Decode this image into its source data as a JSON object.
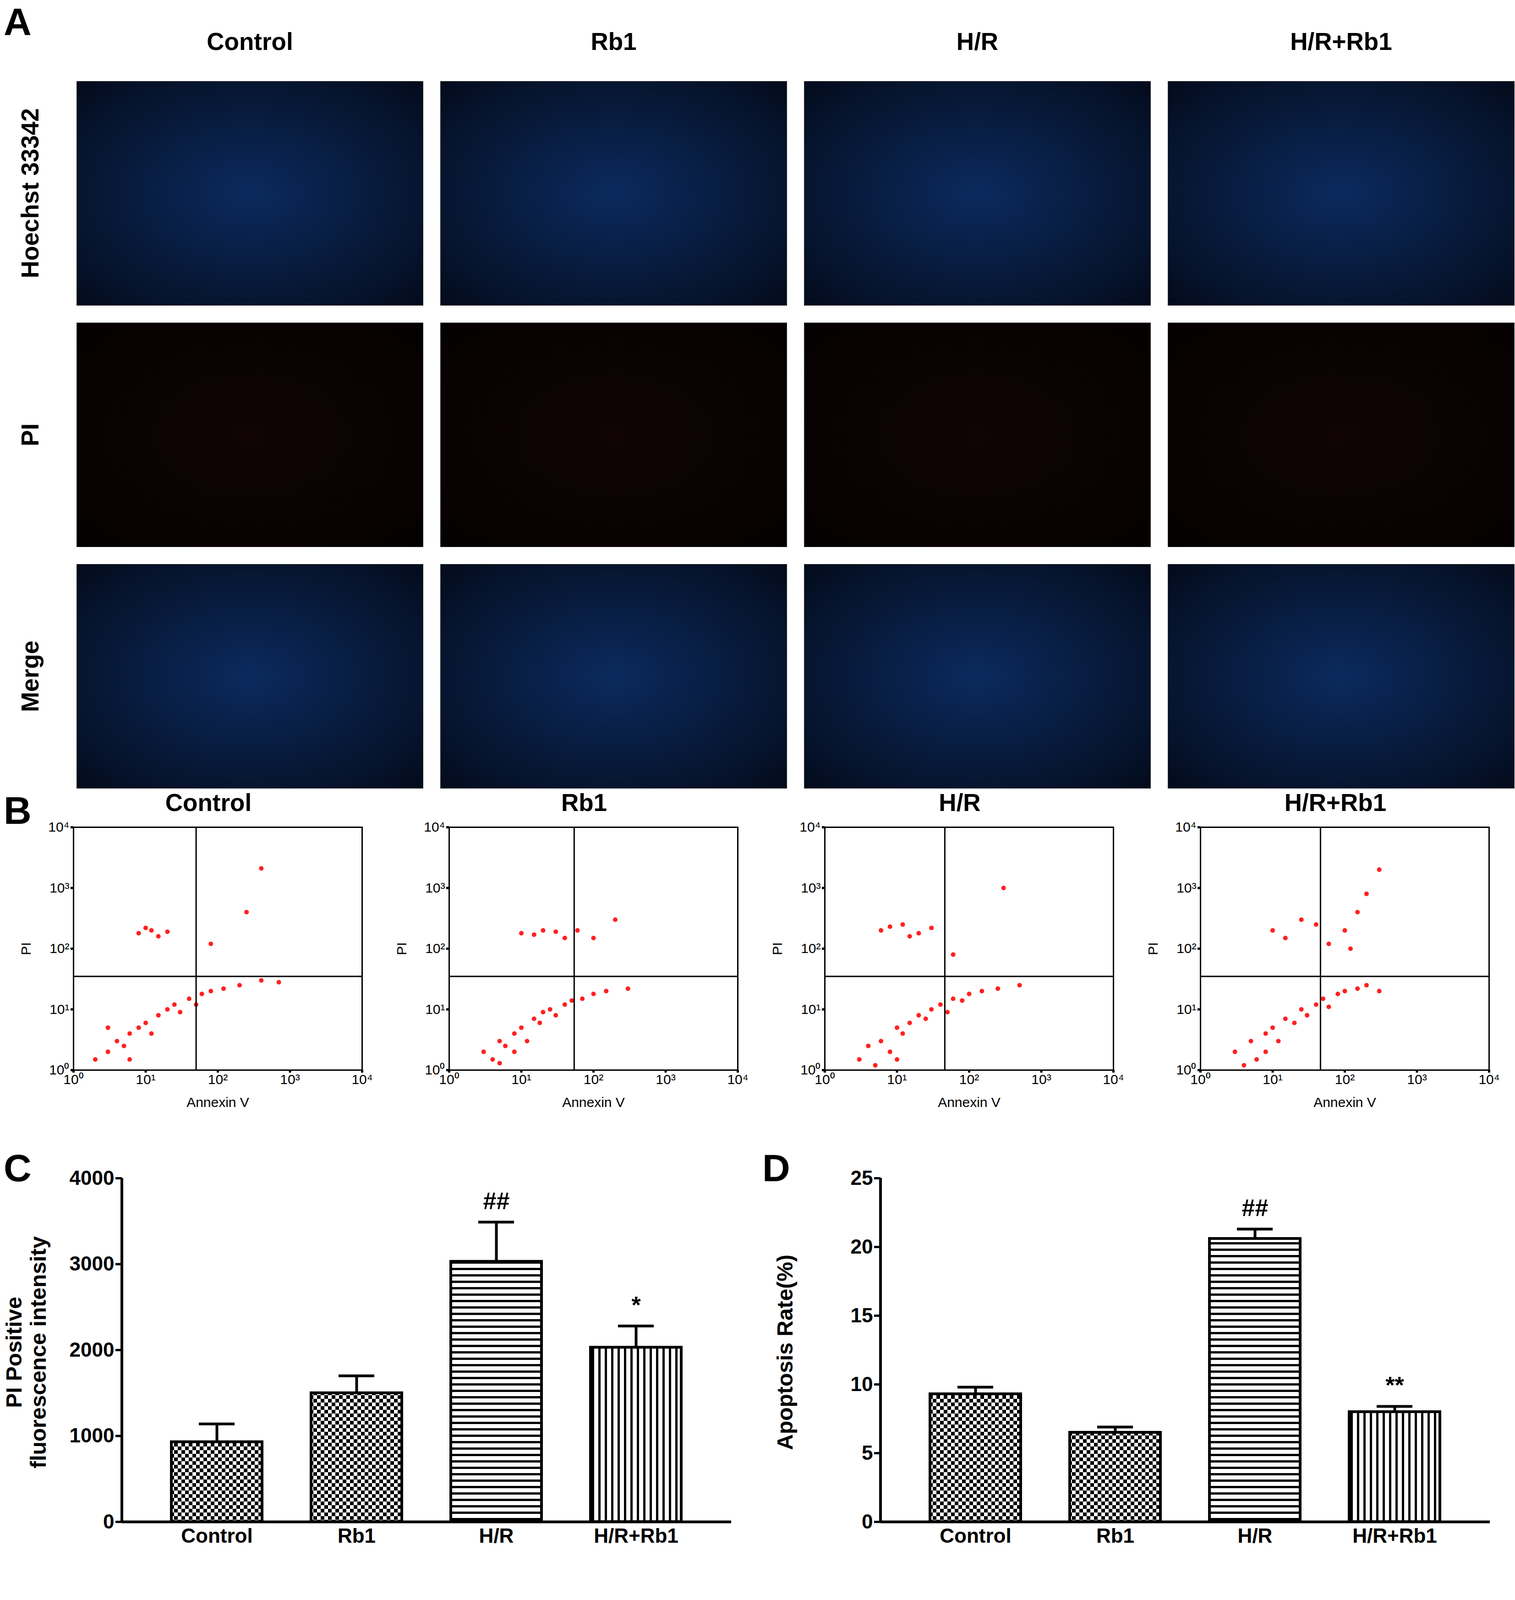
{
  "figure": {
    "panel": "A",
    "columns": [
      "Control",
      "Rb1",
      "H/R",
      "H/R+Rb1"
    ],
    "rows": [
      "Hoechst 33342",
      "PI",
      "Merge"
    ]
  },
  "chart_data": [
    {
      "type": "scatter",
      "panel": "B",
      "title": "Control",
      "x_label": "Annexin V",
      "y_label": "PI",
      "log": true,
      "xlim": [
        1,
        10000
      ],
      "ylim": [
        1,
        10000
      ],
      "xticks": [
        {
          "value": 1,
          "label": "10⁰"
        },
        {
          "value": 10,
          "label": "10¹"
        },
        {
          "value": 100,
          "label": "10²"
        },
        {
          "value": 1000,
          "label": "10³"
        },
        {
          "value": 10000,
          "label": "10⁴"
        }
      ],
      "yticks": [
        {
          "value": 1,
          "label": "10⁰"
        },
        {
          "value": 10,
          "label": "10¹"
        },
        {
          "value": 100,
          "label": "10²"
        },
        {
          "value": 1000,
          "label": "10³"
        },
        {
          "value": 10000,
          "label": "10⁴"
        }
      ],
      "color": "#ff2020",
      "gates": {
        "x": 50,
        "y": 35
      },
      "x": [
        2,
        3,
        4,
        5,
        6,
        8,
        10,
        12,
        15,
        20,
        25,
        30,
        40,
        50,
        60,
        80,
        120,
        200,
        400,
        700,
        3,
        6,
        8,
        12,
        15,
        20,
        10,
        80,
        250,
        400
      ],
      "y": [
        1.5,
        2,
        3,
        2.5,
        4,
        5,
        6,
        4,
        8,
        10,
        12,
        9,
        15,
        12,
        18,
        20,
        22,
        25,
        30,
        28,
        5,
        1.5,
        180,
        200,
        160,
        190,
        220,
        120,
        400,
        2100
      ]
    },
    {
      "type": "scatter",
      "title": "Rb1",
      "x_label": "Annexin V",
      "y_label": "PI",
      "log": true,
      "xlim": [
        1,
        10000
      ],
      "ylim": [
        1,
        10000
      ],
      "xticks": [
        {
          "value": 1,
          "label": "10⁰"
        },
        {
          "value": 10,
          "label": "10¹"
        },
        {
          "value": 100,
          "label": "10²"
        },
        {
          "value": 1000,
          "label": "10³"
        },
        {
          "value": 10000,
          "label": "10⁴"
        }
      ],
      "yticks": [
        {
          "value": 1,
          "label": "10⁰"
        },
        {
          "value": 10,
          "label": "10¹"
        },
        {
          "value": 100,
          "label": "10²"
        },
        {
          "value": 1000,
          "label": "10³"
        },
        {
          "value": 10000,
          "label": "10⁴"
        }
      ],
      "color": "#ff2020",
      "gates": {
        "x": 54,
        "y": 35
      },
      "x": [
        3,
        4,
        5,
        6,
        8,
        10,
        12,
        15,
        18,
        20,
        25,
        30,
        40,
        50,
        70,
        100,
        150,
        300,
        5,
        8,
        10,
        15,
        20,
        30,
        40,
        60,
        100,
        200
      ],
      "y": [
        2,
        1.5,
        3,
        2.5,
        4,
        5,
        3,
        7,
        6,
        9,
        10,
        8,
        12,
        14,
        15,
        18,
        20,
        22,
        1.3,
        2,
        180,
        170,
        200,
        190,
        150,
        200,
        150,
        300
      ]
    },
    {
      "type": "scatter",
      "title": "H/R",
      "x_label": "Annexin V",
      "y_label": "PI",
      "log": true,
      "xlim": [
        1,
        10000
      ],
      "ylim": [
        1,
        10000
      ],
      "xticks": [
        {
          "value": 1,
          "label": "10⁰"
        },
        {
          "value": 10,
          "label": "10¹"
        },
        {
          "value": 100,
          "label": "10²"
        },
        {
          "value": 1000,
          "label": "10³"
        },
        {
          "value": 10000,
          "label": "10⁴"
        }
      ],
      "yticks": [
        {
          "value": 1,
          "label": "10⁰"
        },
        {
          "value": 10,
          "label": "10¹"
        },
        {
          "value": 100,
          "label": "10²"
        },
        {
          "value": 1000,
          "label": "10³"
        },
        {
          "value": 10000,
          "label": "10⁴"
        }
      ],
      "color": "#ff2020",
      "gates": {
        "x": 46,
        "y": 35
      },
      "x": [
        3,
        4,
        6,
        8,
        10,
        12,
        15,
        20,
        25,
        30,
        40,
        50,
        60,
        80,
        100,
        150,
        250,
        500,
        5,
        10,
        6,
        8,
        12,
        20,
        30,
        15,
        60,
        300
      ],
      "y": [
        1.5,
        2.5,
        3,
        2,
        5,
        4,
        6,
        8,
        7,
        10,
        12,
        9,
        15,
        14,
        18,
        20,
        22,
        25,
        1.2,
        1.5,
        200,
        230,
        250,
        180,
        220,
        160,
        80,
        1000
      ]
    },
    {
      "type": "scatter",
      "title": "H/R+Rb1",
      "x_label": "Annexin V",
      "y_label": "PI",
      "log": true,
      "xlim": [
        1,
        10000
      ],
      "ylim": [
        1,
        10000
      ],
      "xticks": [
        {
          "value": 1,
          "label": "10⁰"
        },
        {
          "value": 10,
          "label": "10¹"
        },
        {
          "value": 100,
          "label": "10²"
        },
        {
          "value": 1000,
          "label": "10³"
        },
        {
          "value": 10000,
          "label": "10⁴"
        }
      ],
      "yticks": [
        {
          "value": 1,
          "label": "10⁰"
        },
        {
          "value": 10,
          "label": "10¹"
        },
        {
          "value": 100,
          "label": "10²"
        },
        {
          "value": 1000,
          "label": "10³"
        },
        {
          "value": 10000,
          "label": "10⁴"
        }
      ],
      "color": "#ff2020",
      "gates": {
        "x": 46,
        "y": 35
      },
      "x": [
        3,
        5,
        6,
        8,
        10,
        12,
        15,
        20,
        25,
        30,
        40,
        50,
        60,
        80,
        100,
        150,
        200,
        300,
        4,
        8,
        10,
        15,
        25,
        40,
        60,
        100,
        150,
        200,
        300,
        120
      ],
      "y": [
        2,
        3,
        1.5,
        4,
        5,
        3,
        7,
        6,
        10,
        8,
        12,
        15,
        11,
        18,
        20,
        22,
        25,
        20,
        1.2,
        2,
        200,
        150,
        300,
        250,
        120,
        200,
        400,
        800,
        2000,
        100
      ]
    },
    {
      "type": "bar",
      "panel": "C",
      "y_label": "PI Positive\nfluorescence intensity",
      "categories": [
        "Control",
        "Rb1",
        "H/R",
        "H/R+Rb1"
      ],
      "values": [
        930,
        1500,
        3030,
        2030
      ],
      "errors": [
        210,
        200,
        460,
        250
      ],
      "color": "#000000",
      "ylim": [
        0,
        4000
      ],
      "yticks": [
        0,
        1000,
        2000,
        3000,
        4000
      ],
      "annotations": [
        {
          "category": "H/R",
          "text": "##"
        },
        {
          "category": "H/R+Rb1",
          "text": "*"
        }
      ]
    },
    {
      "type": "bar",
      "panel": "D",
      "y_label": "Apoptosis Rate(%)",
      "categories": [
        "Control",
        "Rb1",
        "H/R",
        "H/R+Rb1"
      ],
      "values": [
        9.3,
        6.5,
        20.6,
        8.0
      ],
      "errors": [
        0.5,
        0.4,
        0.7,
        0.4
      ],
      "color": "#000000",
      "ylim": [
        0,
        25
      ],
      "yticks": [
        0,
        5,
        10,
        15,
        20,
        25
      ],
      "annotations": [
        {
          "category": "H/R",
          "text": "##"
        },
        {
          "category": "H/R+Rb1",
          "text": "**"
        }
      ]
    }
  ]
}
